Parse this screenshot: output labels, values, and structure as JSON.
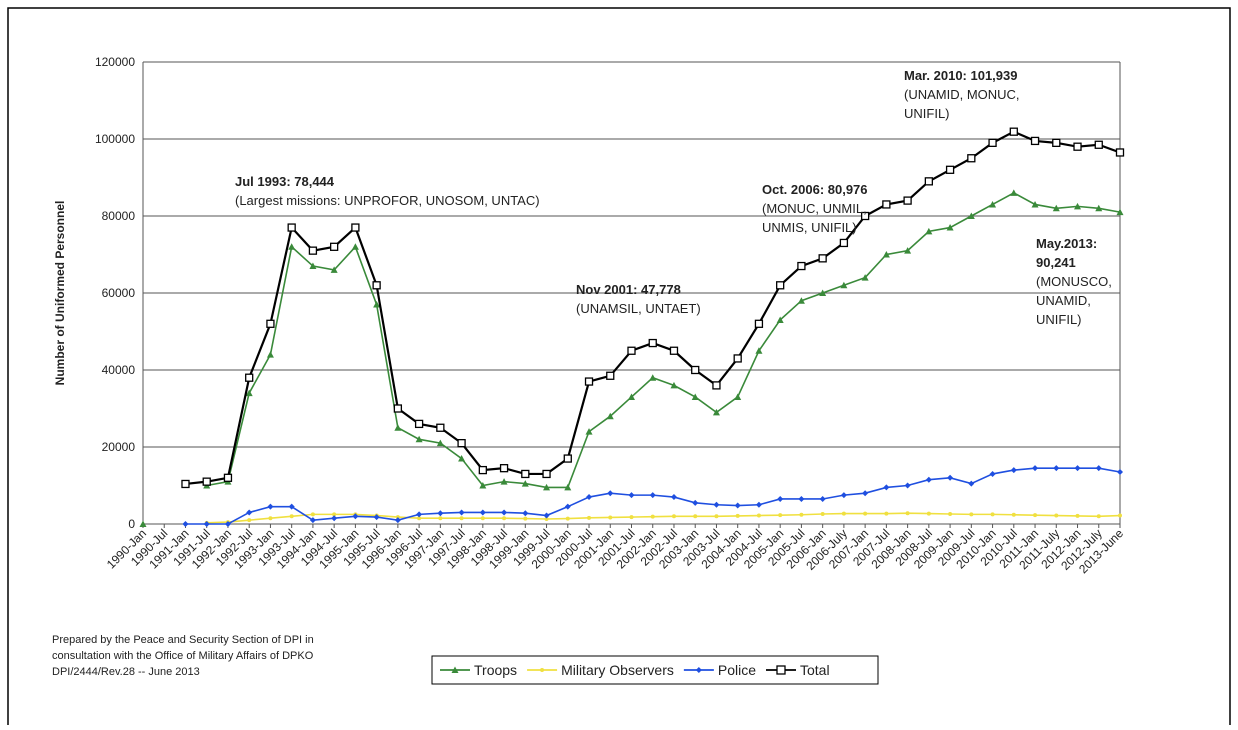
{
  "chart_data": {
    "type": "line",
    "ylabel": "Number of Uniformed Personnel",
    "categories": [
      "1990-Jan",
      "1990-Jul",
      "1991-Jan",
      "1991-Jul",
      "1992-Jan",
      "1992-Jul",
      "1993-Jan",
      "1993-Jul",
      "1994-Jan",
      "1994-Jul",
      "1995-Jan",
      "1995-Jul",
      "1996-Jan",
      "1996-Jul",
      "1997-Jan",
      "1997-Jul",
      "1998-Jan",
      "1998-Jul",
      "1999-Jan",
      "1999-Jul",
      "2000-Jan",
      "2000-Jul",
      "2001-Jan",
      "2001-Jul",
      "2002-Jan",
      "2002-Jul",
      "2003-Jan",
      "2003-Jul",
      "2004-Jan",
      "2004-Jul",
      "2005-Jan",
      "2005-Jul",
      "2006-Jan",
      "2006-July",
      "2007-Jan",
      "2007-Jul",
      "2008-Jan",
      "2008-Jul",
      "2009-Jan",
      "2009-Jul",
      "2010-Jan",
      "2010-Jul",
      "2011-Jan",
      "2011-July",
      "2012-Jan",
      "2012-July",
      "2013-June"
    ],
    "series": [
      {
        "name": "Troops",
        "color": "#3a8a3a",
        "marker": "triangle",
        "values": [
          0,
          null,
          null,
          10000,
          11000,
          34000,
          44000,
          72000,
          67000,
          66000,
          72000,
          57000,
          25000,
          22000,
          21000,
          17000,
          10000,
          11000,
          10500,
          9500,
          9500,
          24000,
          28000,
          33000,
          38000,
          36000,
          33000,
          29000,
          33000,
          45000,
          53000,
          58000,
          60000,
          62000,
          64000,
          70000,
          71000,
          76000,
          77000,
          80000,
          83000,
          86000,
          83000,
          82000,
          82500,
          82000,
          81000
        ]
      },
      {
        "name": "Military Observers",
        "color": "#f0e040",
        "marker": "dot",
        "values": [
          null,
          null,
          null,
          300,
          500,
          1000,
          1500,
          2000,
          2500,
          2500,
          2500,
          2200,
          1800,
          1500,
          1500,
          1500,
          1500,
          1500,
          1400,
          1300,
          1400,
          1600,
          1700,
          1800,
          1900,
          2000,
          2000,
          2000,
          2100,
          2200,
          2300,
          2400,
          2600,
          2700,
          2700,
          2700,
          2800,
          2700,
          2600,
          2500,
          2500,
          2400,
          2300,
          2200,
          2100,
          2000,
          2200
        ]
      },
      {
        "name": "Police",
        "color": "#1f4fe0",
        "marker": "diamond",
        "values": [
          null,
          null,
          0,
          0,
          0,
          3000,
          4500,
          4500,
          1000,
          1500,
          2000,
          1800,
          1000,
          2500,
          2800,
          3000,
          3000,
          3000,
          2800,
          2200,
          4500,
          7000,
          8000,
          7500,
          7500,
          7000,
          5500,
          5000,
          4800,
          5000,
          6500,
          6500,
          6500,
          7500,
          8000,
          9500,
          10000,
          11500,
          12000,
          10500,
          13000,
          14000,
          14500,
          14500,
          14500,
          14500,
          13500
        ]
      },
      {
        "name": "Total",
        "color": "#000000",
        "marker": "square",
        "values": [
          null,
          null,
          10400,
          11000,
          12000,
          38000,
          52000,
          77000,
          71000,
          72000,
          77000,
          62000,
          30000,
          26000,
          25000,
          21000,
          14000,
          14500,
          13000,
          13000,
          17000,
          37000,
          38500,
          45000,
          47000,
          45000,
          40000,
          36000,
          43000,
          52000,
          62000,
          67000,
          69000,
          73000,
          80000,
          83000,
          84000,
          89000,
          92000,
          95000,
          99000,
          101900,
          99500,
          99000,
          98000,
          98500,
          96500
        ]
      }
    ],
    "ylim": [
      0,
      120000
    ],
    "yticks": [
      0,
      20000,
      40000,
      60000,
      80000,
      100000,
      120000
    ],
    "grid": true,
    "legend": "bottom",
    "annotations": [
      {
        "lines": [
          "Jul 1993: 78,444",
          "(Largest missions: UNPROFOR, UNOSOM, UNTAC)"
        ]
      },
      {
        "lines": [
          "Nov 2001: 47,778",
          "(UNAMSIL, UNTAET)"
        ]
      },
      {
        "lines": [
          "Oct. 2006: 80,976",
          "(MONUC, UNMIL,",
          "UNMIS, UNIFIL)"
        ]
      },
      {
        "lines": [
          "Mar. 2010: 101,939",
          "(UNAMID, MONUC,",
          "UNIFIL)"
        ]
      },
      {
        "lines": [
          "May.2013:",
          "90,241",
          "(MONUSCO,",
          "UNAMID,",
          "UNIFIL)"
        ]
      }
    ],
    "notes": [
      "Prepared by the Peace and Security Section of DPI in",
      "consultation with the Office of Military Affairs of DPKO",
      "DPI/2444/Rev.28 -- June 2013"
    ]
  }
}
